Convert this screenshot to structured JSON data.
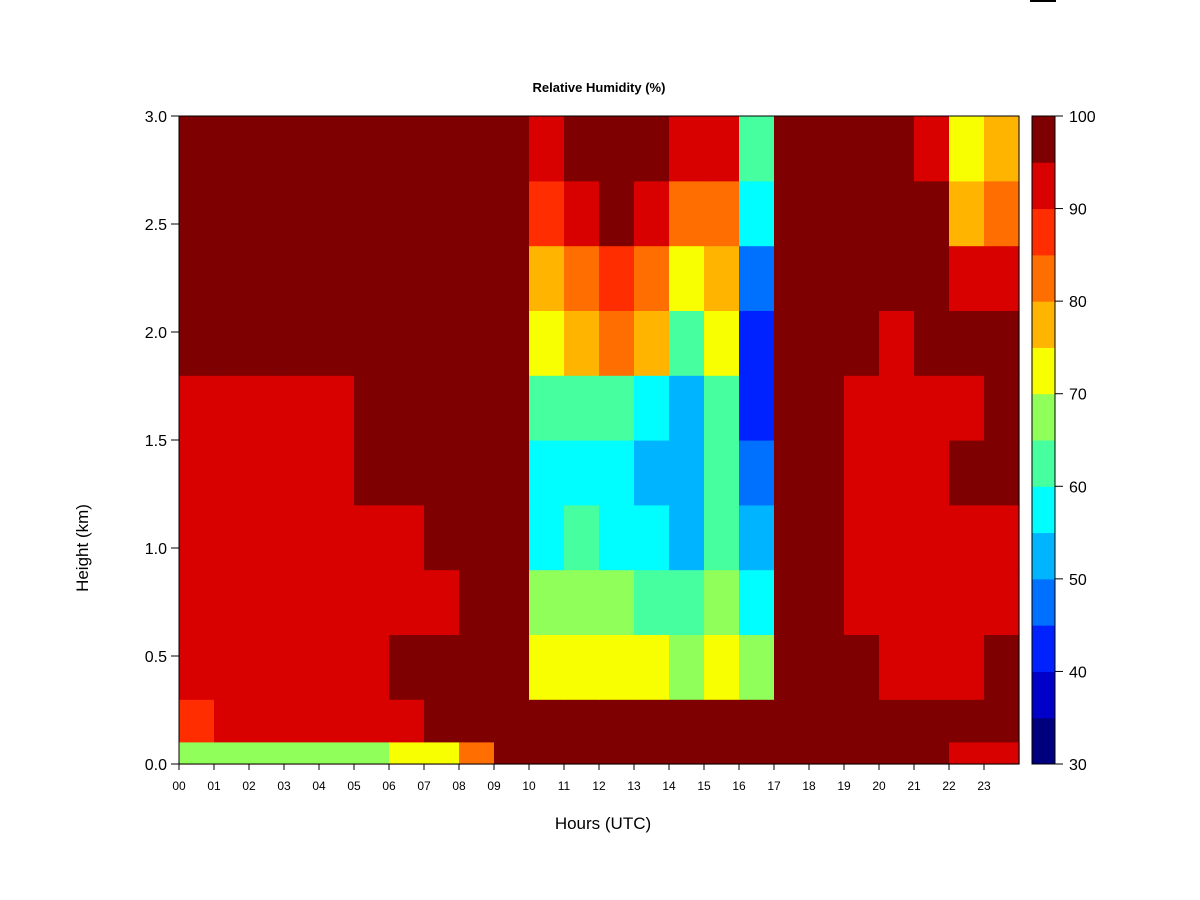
{
  "chart_data": {
    "type": "heatmap",
    "title": "Relative Humidity (%)",
    "xlabel": "Hours (UTC)",
    "ylabel": "Height (km)",
    "xlim": [
      0,
      24
    ],
    "ylim": [
      0,
      3.0
    ],
    "x_ticks": [
      "00",
      "01",
      "02",
      "03",
      "04",
      "05",
      "06",
      "07",
      "08",
      "09",
      "10",
      "11",
      "12",
      "13",
      "14",
      "15",
      "16",
      "17",
      "18",
      "19",
      "20",
      "21",
      "22",
      "23"
    ],
    "y_ticks": [
      "0.0",
      "0.5",
      "1.0",
      "1.5",
      "2.0",
      "2.5",
      "3.0"
    ],
    "y_values": [
      0.15,
      0.45,
      0.75,
      1.05,
      1.35,
      1.65,
      1.95,
      2.25,
      2.55,
      2.85
    ],
    "z_rows": [
      [
        89,
        90,
        90,
        91,
        91,
        92,
        94,
        96,
        96,
        95,
        96,
        96,
        97,
        97,
        98,
        98,
        99,
        99,
        98,
        97,
        95,
        95,
        96,
        96
      ],
      [
        91,
        92,
        91,
        92,
        93,
        93,
        95,
        96,
        97,
        96,
        70,
        71,
        72,
        70,
        69,
        72,
        66,
        97,
        96,
        96,
        92,
        94,
        94,
        95
      ],
      [
        91,
        90,
        91,
        91,
        92,
        93,
        92,
        93,
        96,
        96,
        66,
        68,
        65,
        64,
        62,
        67,
        58,
        97,
        95,
        93,
        91,
        93,
        93,
        94
      ],
      [
        92,
        93,
        92,
        92,
        93,
        94,
        93,
        95,
        96,
        96,
        58,
        60,
        59,
        55,
        53,
        62,
        51,
        98,
        96,
        93,
        92,
        93,
        94,
        94
      ],
      [
        93,
        93,
        94,
        94,
        94,
        95,
        96,
        97,
        97,
        96,
        55,
        58,
        57,
        53,
        50,
        60,
        45,
        98,
        96,
        94,
        93,
        94,
        95,
        95
      ],
      [
        93,
        92,
        93,
        94,
        94,
        96,
        97,
        98,
        97,
        96,
        60,
        62,
        61,
        57,
        52,
        60,
        40,
        98,
        96,
        94,
        92,
        92,
        94,
        95
      ],
      [
        95,
        96,
        96,
        96,
        96,
        98,
        99,
        100,
        98,
        96,
        74,
        78,
        82,
        78,
        64,
        70,
        43,
        98,
        97,
        95,
        94,
        95,
        97,
        98
      ],
      [
        99,
        99,
        99,
        99,
        99,
        100,
        100,
        100,
        99,
        96,
        78,
        83,
        85,
        80,
        70,
        76,
        46,
        99,
        98,
        98,
        99,
        98,
        90,
        90
      ],
      [
        100,
        100,
        100,
        100,
        100,
        100,
        100,
        100,
        99,
        96,
        85,
        91,
        96,
        90,
        80,
        84,
        56,
        100,
        100,
        100,
        99,
        97,
        78,
        80
      ],
      [
        100,
        100,
        100,
        100,
        100,
        100,
        100,
        100,
        99,
        97,
        92,
        96,
        100,
        98,
        90,
        90,
        64,
        100,
        100,
        100,
        98,
        94,
        72,
        75
      ]
    ],
    "surface_layer": {
      "height_km": 0.1,
      "values": [
        65,
        66,
        66,
        67,
        68,
        69,
        70,
        72,
        84,
        96,
        100,
        100,
        100,
        100,
        100,
        97,
        100,
        100,
        99,
        98,
        96,
        95,
        93,
        90
      ]
    },
    "colorbar": {
      "min": 30,
      "max": 100,
      "levels": [
        30,
        35,
        40,
        45,
        50,
        55,
        60,
        65,
        70,
        75,
        80,
        85,
        90,
        95,
        100
      ],
      "tick_labels": [
        "30",
        "40",
        "50",
        "60",
        "70",
        "80",
        "90",
        "100"
      ],
      "colors": [
        "#00007f",
        "#0000c8",
        "#0022ff",
        "#0070ff",
        "#00b4ff",
        "#00fdff",
        "#46ff9e",
        "#90ff5a",
        "#f8ff00",
        "#ffb400",
        "#ff6e00",
        "#ff2d00",
        "#d90000",
        "#7f0000"
      ]
    }
  }
}
